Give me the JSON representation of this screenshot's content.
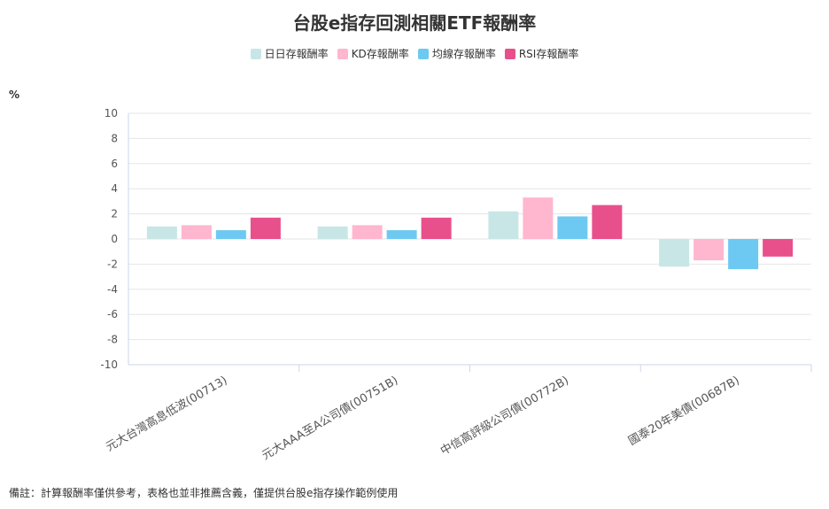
{
  "chart_data": {
    "type": "bar",
    "title": "台股e指存回測相關ETF報酬率",
    "ylabel": "%",
    "ylim": [
      -10,
      10
    ],
    "yticks": [
      10,
      8,
      6,
      4,
      2,
      0,
      -2,
      -4,
      -6,
      -8,
      -10
    ],
    "categories": [
      "元大台灣高息低波(00713)",
      "元大AAA至A公司債(00751B)",
      "中信高評級公司債(00772B)",
      "國泰20年美債(00687B)"
    ],
    "series": [
      {
        "name": "日日存報酬率",
        "color": "#c8e6e6",
        "values": [
          1.0,
          1.0,
          2.2,
          -2.2
        ]
      },
      {
        "name": "KD存報酬率",
        "color": "#ffb6cf",
        "values": [
          1.1,
          1.1,
          3.3,
          -1.7
        ]
      },
      {
        "name": "均線存報酬率",
        "color": "#6ec9f2",
        "values": [
          0.7,
          0.7,
          1.8,
          -2.4
        ]
      },
      {
        "name": "RSI存報酬率",
        "color": "#e8508c",
        "values": [
          1.7,
          1.7,
          2.7,
          -1.4
        ]
      }
    ],
    "grid": true,
    "legend_position": "top-center"
  },
  "note": "備註：計算報酬率僅供參考，表格也並非推薦含義，僅提供台股e指存操作範例使用"
}
